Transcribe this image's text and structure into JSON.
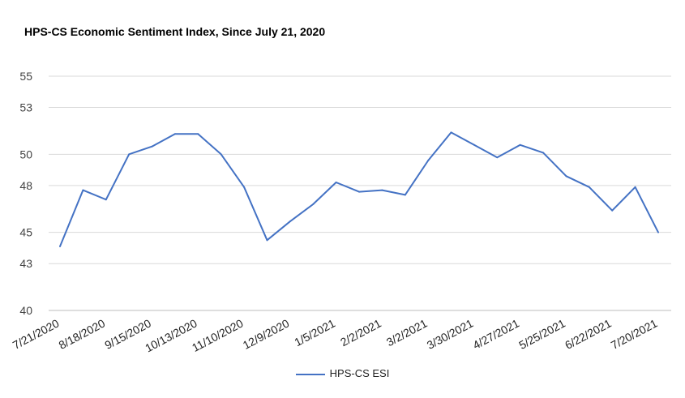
{
  "chart_data": {
    "type": "line",
    "title": "HPS-CS Economic Sentiment Index, Since July 21, 2020",
    "xlabel": "",
    "ylabel": "",
    "ylim": [
      40,
      55
    ],
    "yticks": [
      40,
      43,
      45,
      48,
      50,
      53,
      55
    ],
    "grid": true,
    "legend_position": "bottom",
    "x_tick_labels": [
      "7/21/2020",
      "8/18/2020",
      "9/15/2020",
      "10/13/2020",
      "11/10/2020",
      "12/9/2020",
      "1/5/2021",
      "2/2/2021",
      "3/2/2021",
      "3/30/2021",
      "4/27/2021",
      "5/25/2021",
      "6/22/2021",
      "7/20/2021"
    ],
    "x": [
      "7/21/2020",
      "8/4/2020",
      "8/18/2020",
      "9/1/2020",
      "9/15/2020",
      "9/29/2020",
      "10/13/2020",
      "10/27/2020",
      "11/10/2020",
      "11/24/2020",
      "12/9/2020",
      "12/22/2020",
      "1/5/2021",
      "1/19/2021",
      "2/2/2021",
      "2/16/2021",
      "3/2/2021",
      "3/16/2021",
      "3/30/2021",
      "4/13/2021",
      "4/27/2021",
      "5/11/2021",
      "5/25/2021",
      "6/8/2021",
      "6/22/2021",
      "7/6/2021",
      "7/20/2021"
    ],
    "series": [
      {
        "name": "HPS-CS ESI",
        "color": "#4472c4",
        "values": [
          44.1,
          47.7,
          47.1,
          50.0,
          50.5,
          51.3,
          51.3,
          50.0,
          47.9,
          44.5,
          45.7,
          46.8,
          48.2,
          47.6,
          47.7,
          47.4,
          49.6,
          51.4,
          50.6,
          49.8,
          50.6,
          50.1,
          48.6,
          47.9,
          46.4,
          47.9,
          45.0
        ]
      }
    ]
  }
}
